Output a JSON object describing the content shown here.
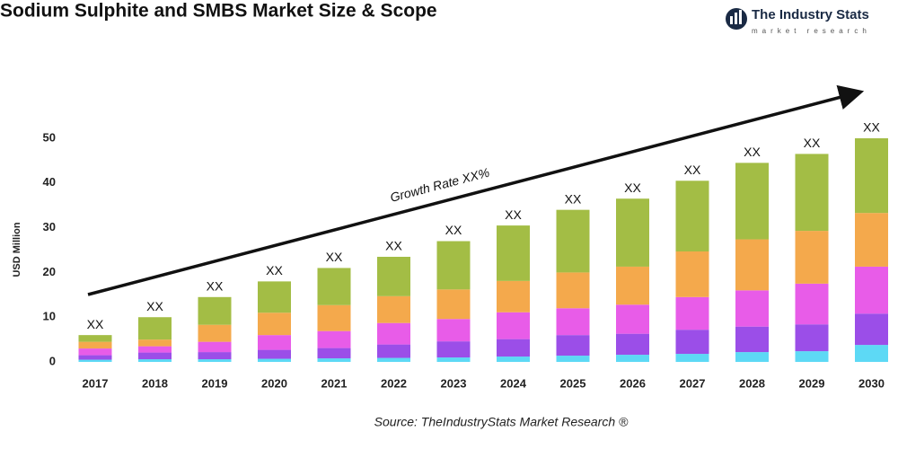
{
  "chart_data": {
    "type": "stacked_bar",
    "title": "Sodium Sulphite and SMBS Market Size & Scope",
    "logo_title": "The Industry Stats",
    "logo_subtitle": "market research",
    "y_label": "USD Million",
    "annotation": "Growth Rate XX%",
    "source": "Source: TheIndustryStats Market Research ®",
    "categories": [
      "2017",
      "2018",
      "2019",
      "2020",
      "2021",
      "2022",
      "2023",
      "2024",
      "2025",
      "2026",
      "2027",
      "2028",
      "2029",
      "2030"
    ],
    "series": [
      {
        "color": "#5dd9f5",
        "values": [
          0.5,
          0.6,
          0.6,
          0.7,
          0.8,
          0.9,
          1,
          1.2,
          1.4,
          1.6,
          1.8,
          2.2,
          2.4,
          3.8
        ]
      },
      {
        "color": "#9b4ee8",
        "values": [
          1,
          1.5,
          1.6,
          2,
          2.3,
          3,
          3.6,
          3.9,
          4.6,
          4.7,
          5.4,
          5.7,
          6,
          7
        ]
      },
      {
        "color": "#e85ce8",
        "values": [
          1.5,
          1.4,
          2.3,
          3.3,
          3.8,
          4.8,
          5,
          6,
          6,
          6.5,
          7.3,
          8.1,
          9.1,
          10.5
        ]
      },
      {
        "color": "#f4a94c",
        "values": [
          1.5,
          1.5,
          3.8,
          5,
          5.8,
          6,
          6.6,
          7,
          8,
          8.5,
          10.2,
          11.4,
          11.8,
          12
        ]
      },
      {
        "color": "#a3bd45",
        "values": [
          1.5,
          5,
          6.2,
          7,
          8.3,
          8.8,
          10.8,
          12.4,
          14,
          15.2,
          15.8,
          17.1,
          17.2,
          16.7
        ]
      }
    ],
    "total_labels": [
      "XX",
      "XX",
      "XX",
      "XX",
      "XX",
      "XX",
      "XX",
      "XX",
      "XX",
      "XX",
      "XX",
      "XX",
      "XX",
      "XX"
    ],
    "ylim": [
      -2,
      52
    ],
    "yticks": [
      0,
      10,
      20,
      30,
      40,
      50
    ]
  }
}
